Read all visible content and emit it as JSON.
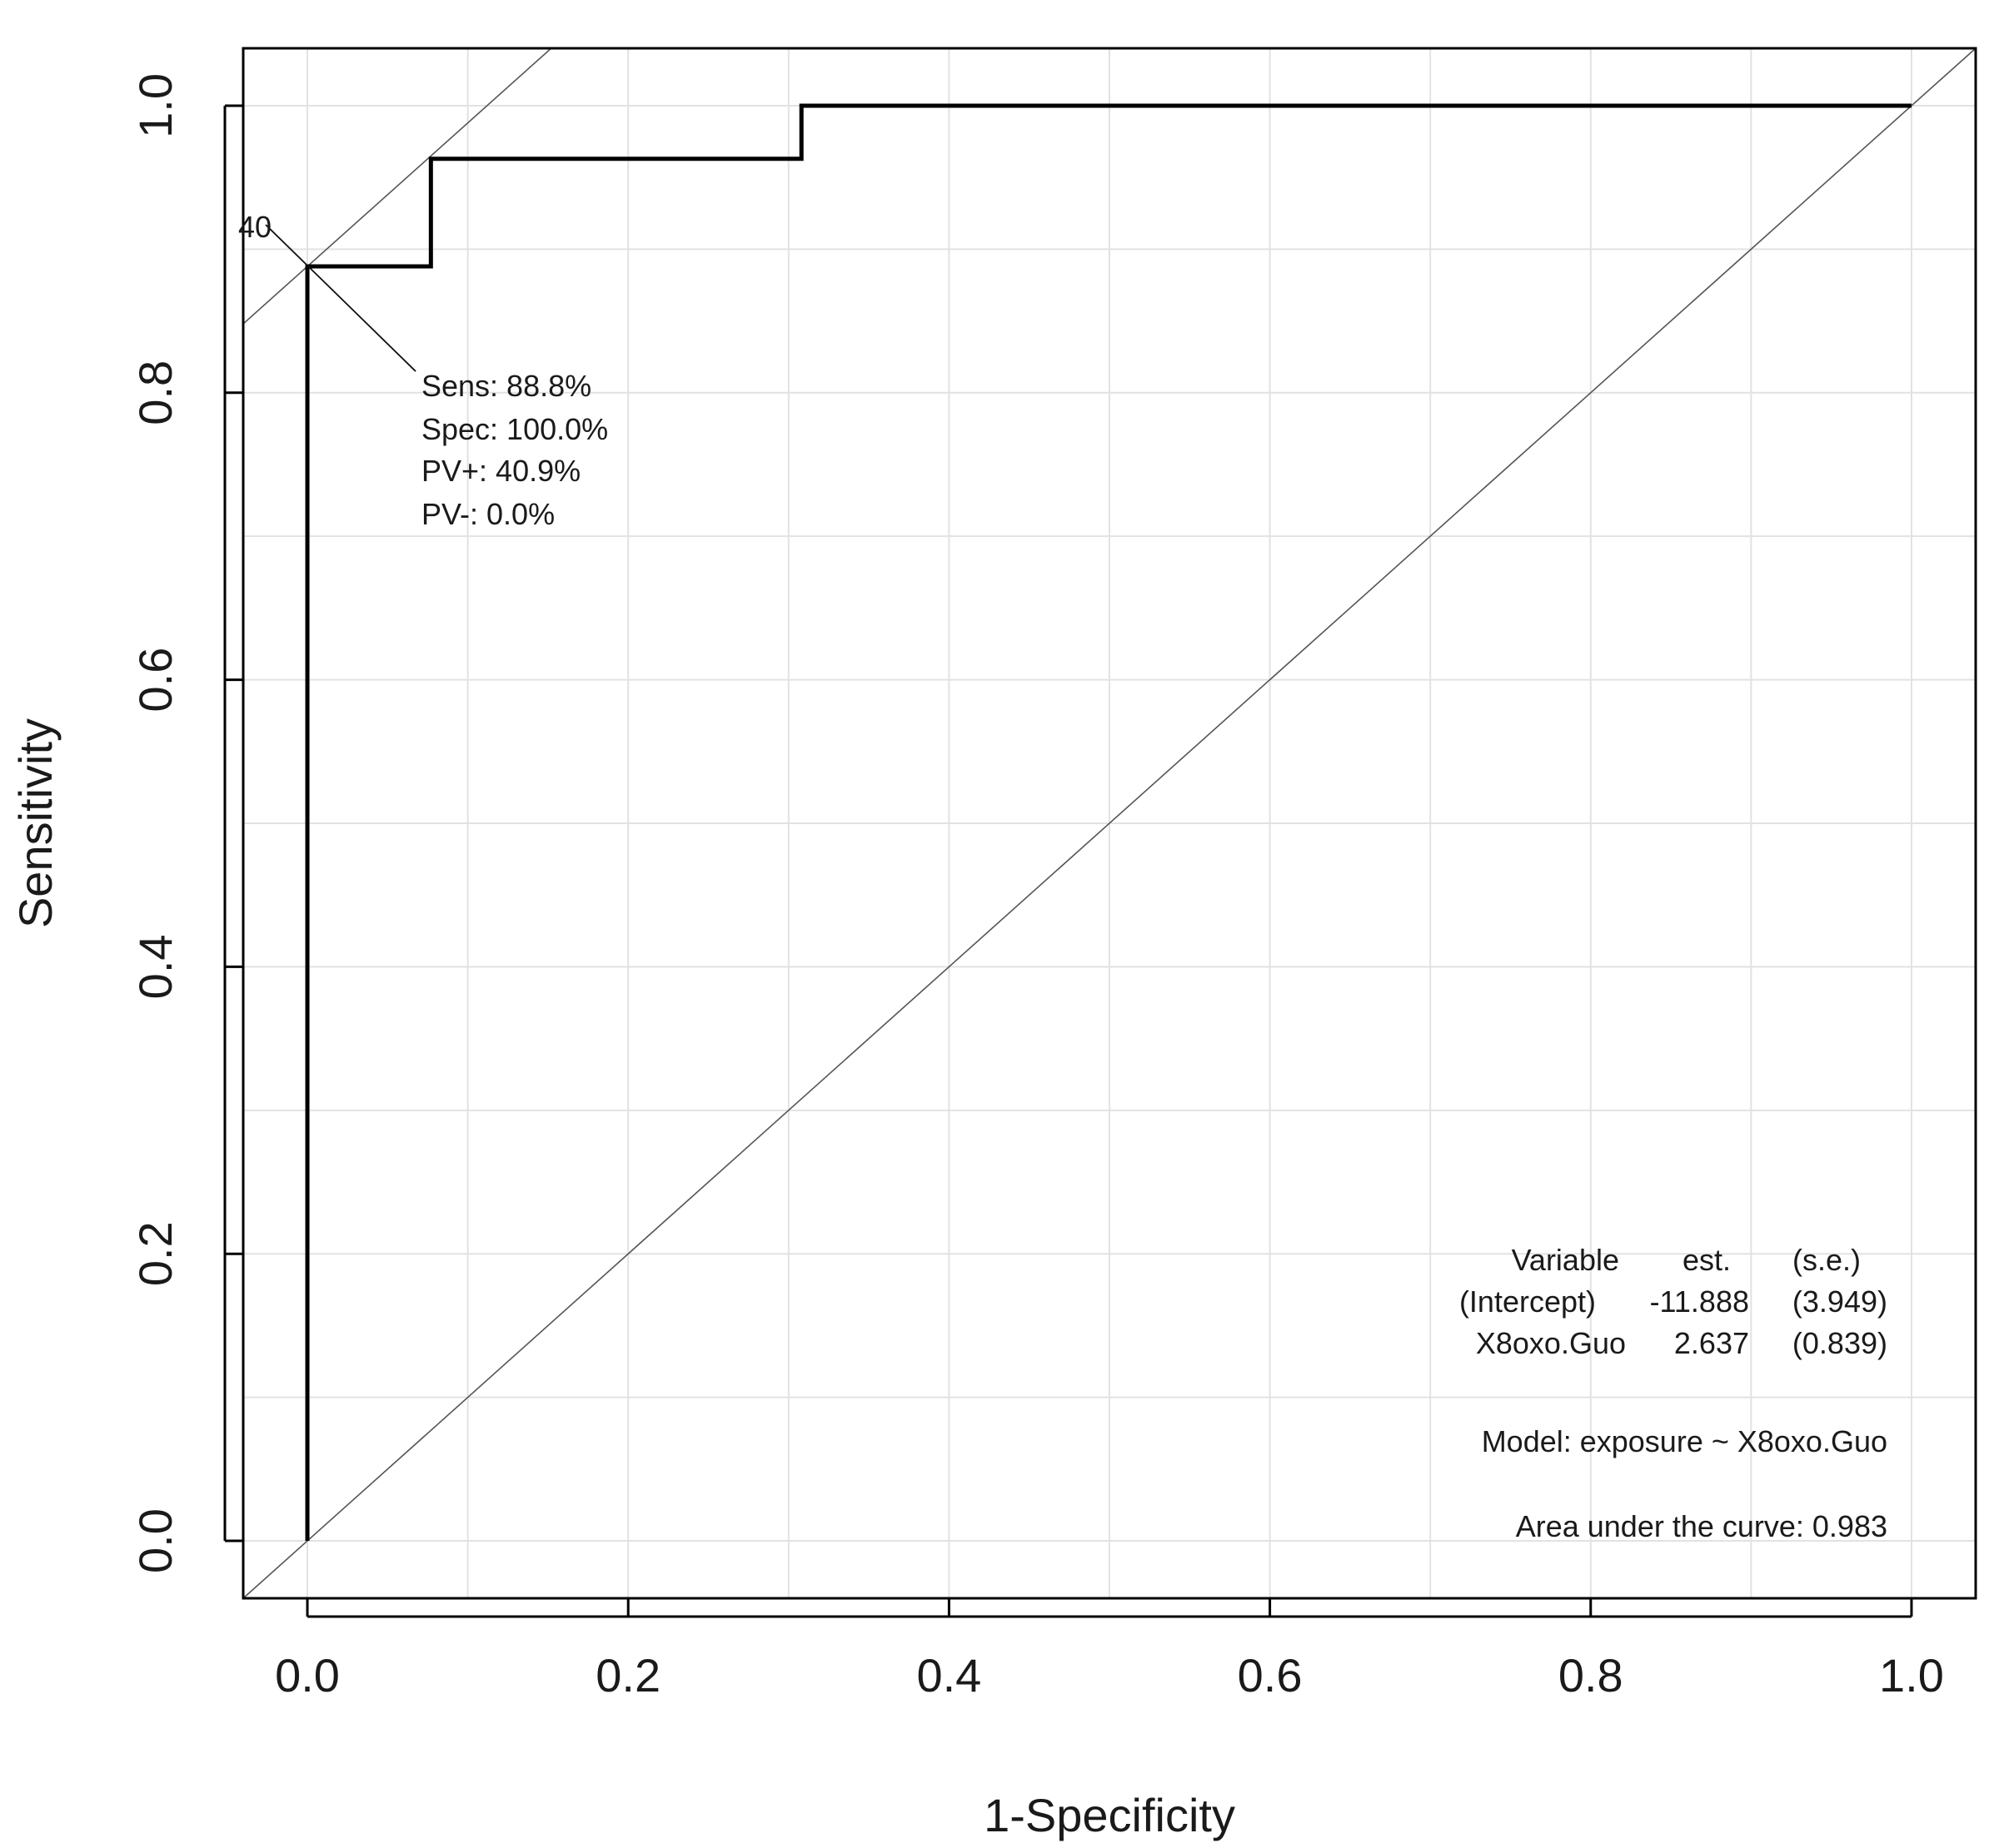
{
  "chart_data": {
    "type": "line",
    "title": "",
    "xlabel": "1-Specificity",
    "ylabel": "Sensitivity",
    "xlim": [
      -0.04,
      1.04
    ],
    "ylim": [
      -0.04,
      1.04
    ],
    "x_ticks": [
      0.0,
      0.2,
      0.4,
      0.6,
      0.8,
      1.0
    ],
    "y_ticks": [
      0.0,
      0.2,
      0.4,
      0.6,
      0.8,
      1.0
    ],
    "x_tick_labels": [
      "0.0",
      "0.2",
      "0.4",
      "0.6",
      "0.8",
      "1.0"
    ],
    "y_tick_labels": [
      "0.0",
      "0.2",
      "0.4",
      "0.6",
      "0.8",
      "1.0"
    ],
    "grid": true,
    "grid_step": 0.1,
    "series": [
      {
        "name": "ROC curve",
        "x": [
          0.0,
          0.0,
          0.077,
          0.077,
          0.308,
          0.308,
          1.0
        ],
        "y": [
          0.0,
          0.888,
          0.888,
          0.963,
          0.963,
          1.0,
          1.0
        ]
      },
      {
        "name": "chance diagonal",
        "x": [
          -0.04,
          1.04
        ],
        "y": [
          -0.04,
          1.04
        ]
      }
    ],
    "optimal_point": {
      "x": 0.0,
      "y": 0.888,
      "tangent_slope": 1,
      "cutoff_label": "40",
      "annotation": [
        "Sens: 88.8%",
        "Spec: 100.0%",
        "PV+: 40.9%",
        "PV-: 0.0%"
      ]
    },
    "model_table": {
      "headers": [
        "Variable",
        "est.",
        "(s.e.)"
      ],
      "rows": [
        [
          "(Intercept)",
          "-11.888",
          "(3.949)"
        ],
        [
          "X8oxo.Guo",
          "2.637",
          "(0.839)"
        ]
      ],
      "model": "Model:  exposure ~ X8oxo.Guo",
      "auc": "Area under the curve: 0.983"
    }
  }
}
